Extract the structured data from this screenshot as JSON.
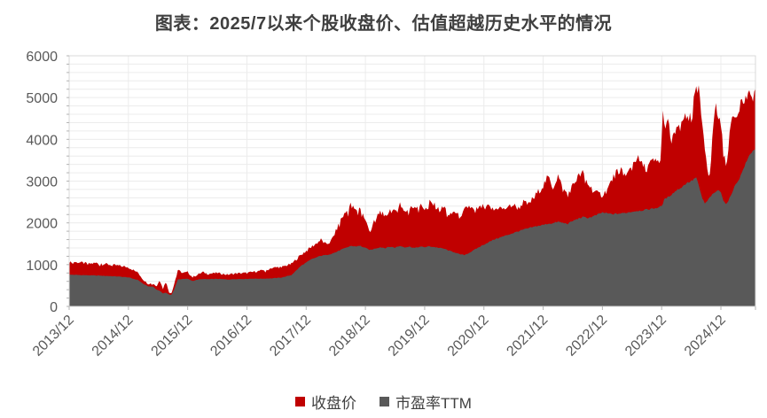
{
  "chart_data": {
    "type": "area",
    "title": "图表：2025/7以来个股收盘价、估值超越历史水平的情况",
    "x_domain": [
      0,
      139
    ],
    "x_domain_note": "months since 2013/12; right edge = 2025/07",
    "x_tick_months": [
      0,
      12,
      24,
      36,
      48,
      60,
      72,
      84,
      96,
      108,
      120,
      132
    ],
    "x_tick_labels": [
      "2013/12",
      "2014/12",
      "2015/12",
      "2016/12",
      "2017/12",
      "2018/12",
      "2019/12",
      "2020/12",
      "2021/12",
      "2022/12",
      "2023/12",
      "2024/12"
    ],
    "y_ticks": [
      0,
      1000,
      2000,
      3000,
      4000,
      5000,
      6000
    ],
    "ylim": [
      0,
      6000
    ],
    "grid_minor_step": 200,
    "grid_on": true,
    "legend_position": "bottom",
    "colors": {
      "close": "#c00000",
      "pe": "#595959",
      "grid": "#ececec",
      "border": "#d9d9d9",
      "tick": "#b3b3b3",
      "axis_text": "#595959",
      "title_text": "#3f3f3f",
      "legend_text": "#404040"
    },
    "series": [
      {
        "name": "收盘价",
        "color": "#c00000",
        "jitter": 0.03,
        "spike": 0.07,
        "points": [
          [
            0,
            1080
          ],
          [
            2,
            1055
          ],
          [
            4,
            1020
          ],
          [
            6,
            1045
          ],
          [
            8,
            1000
          ],
          [
            10,
            975
          ],
          [
            12,
            935
          ],
          [
            13,
            870
          ],
          [
            14,
            800
          ],
          [
            15,
            640
          ],
          [
            16,
            540
          ],
          [
            17,
            560
          ],
          [
            17.7,
            470
          ],
          [
            18.3,
            640
          ],
          [
            19,
            420
          ],
          [
            19.6,
            615
          ],
          [
            20.2,
            350
          ],
          [
            20.7,
            310
          ],
          [
            21.2,
            500
          ],
          [
            22,
            870
          ],
          [
            23,
            800
          ],
          [
            24,
            820
          ],
          [
            25,
            700
          ],
          [
            26,
            760
          ],
          [
            27,
            820
          ],
          [
            28,
            780
          ],
          [
            30,
            800
          ],
          [
            32,
            760
          ],
          [
            34,
            790
          ],
          [
            36,
            800
          ],
          [
            37,
            820
          ],
          [
            39,
            858
          ],
          [
            41,
            920
          ],
          [
            43,
            948
          ],
          [
            45,
            1015
          ],
          [
            47,
            1240
          ],
          [
            49,
            1415
          ],
          [
            51,
            1595
          ],
          [
            52,
            1480
          ],
          [
            53,
            1555
          ],
          [
            54,
            1795
          ],
          [
            55,
            2090
          ],
          [
            56,
            2245
          ],
          [
            57,
            2435
          ],
          [
            58,
            2295
          ],
          [
            59,
            2375
          ],
          [
            60,
            2045
          ],
          [
            61,
            1795
          ],
          [
            62,
            2095
          ],
          [
            63,
            2275
          ],
          [
            64,
            2145
          ],
          [
            65,
            2315
          ],
          [
            66,
            2245
          ],
          [
            67,
            2475
          ],
          [
            68,
            2275
          ],
          [
            69,
            2345
          ],
          [
            70,
            2400
          ],
          [
            71,
            2425
          ],
          [
            72,
            2345
          ],
          [
            73,
            2495
          ],
          [
            74,
            2420
          ],
          [
            75,
            2300
          ],
          [
            76,
            2380
          ],
          [
            77,
            2150
          ],
          [
            78,
            2280
          ],
          [
            79,
            2150
          ],
          [
            80,
            2300
          ],
          [
            81,
            2400
          ],
          [
            82,
            2300
          ],
          [
            83,
            2350
          ],
          [
            84,
            2400
          ],
          [
            85,
            2380
          ],
          [
            86,
            2300
          ],
          [
            87,
            2380
          ],
          [
            88,
            2320
          ],
          [
            89,
            2400
          ],
          [
            90,
            2430
          ],
          [
            91,
            2345
          ],
          [
            92,
            2495
          ],
          [
            93,
            2435
          ],
          [
            94,
            2595
          ],
          [
            95,
            2745
          ],
          [
            96,
            2895
          ],
          [
            97,
            3095
          ],
          [
            98,
            2845
          ],
          [
            99,
            3135
          ],
          [
            100,
            2795
          ],
          [
            101,
            2695
          ],
          [
            102,
            2895
          ],
          [
            103,
            3095
          ],
          [
            104,
            3195
          ],
          [
            105,
            2945
          ],
          [
            106,
            2795
          ],
          [
            107,
            2695
          ],
          [
            108,
            2675
          ],
          [
            109,
            2795
          ],
          [
            110,
            3045
          ],
          [
            111,
            3245
          ],
          [
            112,
            3295
          ],
          [
            113,
            3145
          ],
          [
            114,
            3395
          ],
          [
            115,
            3575
          ],
          [
            116,
            3395
          ],
          [
            117,
            3295
          ],
          [
            118,
            3495
          ],
          [
            119,
            3455
          ],
          [
            119.8,
            3500
          ],
          [
            120.3,
            4730
          ],
          [
            120.8,
            4200
          ],
          [
            121.3,
            4450
          ],
          [
            122,
            3900
          ],
          [
            122.5,
            4100
          ],
          [
            123,
            4300
          ],
          [
            123.8,
            4200
          ],
          [
            124.5,
            4550
          ],
          [
            125,
            4450
          ],
          [
            125.7,
            4700
          ],
          [
            126.3,
            4850
          ],
          [
            127,
            5125
          ],
          [
            127.6,
            5170
          ],
          [
            128.2,
            4300
          ],
          [
            128.6,
            3900
          ],
          [
            129.2,
            3400
          ],
          [
            129.6,
            3100
          ],
          [
            130,
            3500
          ],
          [
            130.6,
            4600
          ],
          [
            131,
            4790
          ],
          [
            131.5,
            4500
          ],
          [
            132,
            4430
          ],
          [
            132.5,
            3600
          ],
          [
            133,
            3455
          ],
          [
            133.5,
            3700
          ],
          [
            134,
            4400
          ],
          [
            134.6,
            4640
          ],
          [
            135.4,
            4700
          ],
          [
            136,
            4900
          ],
          [
            136.8,
            4900
          ],
          [
            137.5,
            5100
          ],
          [
            138,
            4950
          ],
          [
            138.5,
            5050
          ],
          [
            139,
            5180
          ]
        ]
      },
      {
        "name": "市盈率TTM",
        "color": "#595959",
        "jitter": 0.008,
        "spike": 0,
        "points": [
          [
            0,
            760
          ],
          [
            2,
            752
          ],
          [
            4,
            745
          ],
          [
            6,
            738
          ],
          [
            8,
            728
          ],
          [
            10,
            715
          ],
          [
            12,
            695
          ],
          [
            13,
            660
          ],
          [
            14,
            630
          ],
          [
            15,
            540
          ],
          [
            16,
            480
          ],
          [
            17,
            470
          ],
          [
            17.7,
            400
          ],
          [
            18.3,
            380
          ],
          [
            19,
            310
          ],
          [
            19.6,
            330
          ],
          [
            20.2,
            285
          ],
          [
            20.7,
            272
          ],
          [
            21.2,
            380
          ],
          [
            22,
            645
          ],
          [
            23,
            655
          ],
          [
            24,
            660
          ],
          [
            25,
            610
          ],
          [
            26,
            640
          ],
          [
            27,
            655
          ],
          [
            28,
            650
          ],
          [
            30,
            660
          ],
          [
            32,
            645
          ],
          [
            34,
            655
          ],
          [
            36,
            660
          ],
          [
            37,
            665
          ],
          [
            39,
            663
          ],
          [
            41,
            672
          ],
          [
            43,
            690
          ],
          [
            45,
            750
          ],
          [
            47,
            975
          ],
          [
            49,
            1125
          ],
          [
            51,
            1215
          ],
          [
            52,
            1228
          ],
          [
            53,
            1258
          ],
          [
            54,
            1298
          ],
          [
            55,
            1355
          ],
          [
            56,
            1398
          ],
          [
            57,
            1448
          ],
          [
            58,
            1438
          ],
          [
            59,
            1448
          ],
          [
            60,
            1398
          ],
          [
            61,
            1348
          ],
          [
            62,
            1388
          ],
          [
            63,
            1418
          ],
          [
            64,
            1398
          ],
          [
            65,
            1428
          ],
          [
            66,
            1408
          ],
          [
            67,
            1448
          ],
          [
            68,
            1418
          ],
          [
            69,
            1428
          ],
          [
            70,
            1398
          ],
          [
            71,
            1428
          ],
          [
            72,
            1418
          ],
          [
            73,
            1438
          ],
          [
            74,
            1420
          ],
          [
            75,
            1400
          ],
          [
            76,
            1380
          ],
          [
            77,
            1330
          ],
          [
            78,
            1300
          ],
          [
            79,
            1250
          ],
          [
            80,
            1230
          ],
          [
            81,
            1280
          ],
          [
            82,
            1350
          ],
          [
            83,
            1420
          ],
          [
            84,
            1480
          ],
          [
            85,
            1540
          ],
          [
            86,
            1600
          ],
          [
            87,
            1640
          ],
          [
            88,
            1680
          ],
          [
            89,
            1720
          ],
          [
            90,
            1760
          ],
          [
            91,
            1800
          ],
          [
            92,
            1840
          ],
          [
            93,
            1870
          ],
          [
            94,
            1900
          ],
          [
            95,
            1930
          ],
          [
            96,
            1950
          ],
          [
            97,
            1980
          ],
          [
            98,
            1990
          ],
          [
            99,
            2028
          ],
          [
            100,
            1998
          ],
          [
            101,
            1978
          ],
          [
            102,
            2048
          ],
          [
            103,
            2098
          ],
          [
            104,
            2138
          ],
          [
            105,
            2118
          ],
          [
            106,
            2148
          ],
          [
            107,
            2198
          ],
          [
            108,
            2248
          ],
          [
            109,
            2228
          ],
          [
            110,
            2208
          ],
          [
            111,
            2218
          ],
          [
            112,
            2228
          ],
          [
            113,
            2248
          ],
          [
            114,
            2268
          ],
          [
            115,
            2288
          ],
          [
            116,
            2298
          ],
          [
            117,
            2318
          ],
          [
            118,
            2338
          ],
          [
            119,
            2358
          ],
          [
            120,
            2400
          ],
          [
            120.5,
            2550
          ],
          [
            121,
            2600
          ],
          [
            122,
            2680
          ],
          [
            123,
            2780
          ],
          [
            124,
            2850
          ],
          [
            125,
            2950
          ],
          [
            126,
            3000
          ],
          [
            127,
            3090
          ],
          [
            128.2,
            2600
          ],
          [
            128.8,
            2450
          ],
          [
            129.4,
            2550
          ],
          [
            130,
            2650
          ],
          [
            130.6,
            2700
          ],
          [
            131.2,
            2780
          ],
          [
            132,
            2750
          ],
          [
            132.6,
            2500
          ],
          [
            133.2,
            2450
          ],
          [
            133.8,
            2600
          ],
          [
            134.4,
            2780
          ],
          [
            135,
            2920
          ],
          [
            135.9,
            3100
          ],
          [
            136.8,
            3370
          ],
          [
            138,
            3670
          ],
          [
            139,
            3780
          ]
        ]
      }
    ]
  }
}
